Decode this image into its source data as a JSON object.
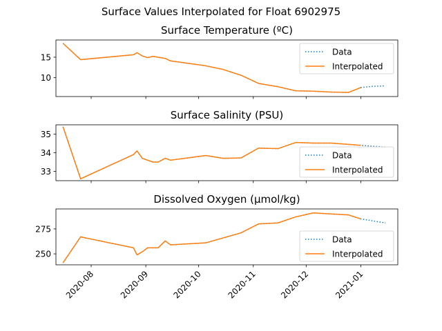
{
  "figure": {
    "title": "Surface Values Interpolated for Float 6902975"
  },
  "x_axis": {
    "tick_labels": [
      "2020-08",
      "2020-09",
      "2020-10",
      "2020-11",
      "2020-12",
      "2021-01"
    ],
    "tick_values": [
      "2020-08-01",
      "2020-09-01",
      "2020-10-01",
      "2020-11-01",
      "2020-12-01",
      "2021-01-01"
    ],
    "range": [
      "2020-07-12",
      "2021-01-22"
    ]
  },
  "legend": {
    "data_label": "Data",
    "interp_label": "Interpolated",
    "placement": "right"
  },
  "colors": {
    "data": "#1f77b4",
    "interpolated": "#ff7f0e"
  },
  "chart_data": [
    {
      "type": "line",
      "title": "Surface Temperature (ºC)",
      "ylim": [
        5.4,
        19.2
      ],
      "yticks": [
        10,
        15
      ],
      "legend_placement": "upper right",
      "series": [
        {
          "name": "Data",
          "style": "dotted",
          "x": [
            "2020-07-16",
            "2020-07-26",
            "2020-08-25",
            "2020-08-27",
            "2020-08-30",
            "2020-09-02",
            "2020-09-05",
            "2020-09-08",
            "2020-09-12",
            "2020-09-15",
            "2020-10-05",
            "2020-10-15",
            "2020-10-25",
            "2020-11-04",
            "2020-11-15",
            "2020-11-25",
            "2020-12-05",
            "2020-12-15",
            "2020-12-25",
            "2021-01-01",
            "2021-01-08",
            "2021-01-15"
          ],
          "values": [
            18.4,
            14.4,
            15.6,
            16.1,
            15.3,
            14.9,
            15.2,
            15.0,
            14.7,
            14.1,
            12.9,
            12.0,
            10.6,
            8.6,
            7.8,
            6.8,
            6.7,
            6.5,
            6.4,
            7.6,
            7.9,
            8.0
          ]
        },
        {
          "name": "Interpolated",
          "style": "solid",
          "x": [
            "2020-07-16",
            "2020-07-26",
            "2020-08-25",
            "2020-08-27",
            "2020-08-30",
            "2020-09-02",
            "2020-09-05",
            "2020-09-08",
            "2020-09-12",
            "2020-09-15",
            "2020-10-05",
            "2020-10-15",
            "2020-10-25",
            "2020-11-04",
            "2020-11-15",
            "2020-11-25",
            "2020-12-05",
            "2020-12-15",
            "2020-12-25",
            "2021-01-01"
          ],
          "values": [
            18.4,
            14.4,
            15.6,
            16.1,
            15.3,
            14.9,
            15.2,
            15.0,
            14.7,
            14.1,
            12.9,
            12.0,
            10.6,
            8.6,
            7.8,
            6.8,
            6.7,
            6.5,
            6.4,
            7.6
          ]
        }
      ]
    },
    {
      "type": "line",
      "title": "Surface Salinity (PSU)",
      "ylim": [
        32.5,
        35.5
      ],
      "yticks": [
        33,
        34,
        35
      ],
      "legend_placement": "lower right",
      "series": [
        {
          "name": "Data",
          "style": "dotted",
          "x": [
            "2020-07-16",
            "2020-07-26",
            "2020-08-25",
            "2020-08-27",
            "2020-08-30",
            "2020-09-05",
            "2020-09-08",
            "2020-09-12",
            "2020-09-15",
            "2020-10-05",
            "2020-10-15",
            "2020-10-25",
            "2020-11-04",
            "2020-11-15",
            "2020-11-25",
            "2020-12-05",
            "2020-12-15",
            "2020-12-25",
            "2021-01-01",
            "2021-01-08",
            "2021-01-15"
          ],
          "values": [
            35.4,
            32.6,
            33.9,
            34.1,
            33.7,
            33.5,
            33.5,
            33.7,
            33.6,
            33.85,
            33.7,
            33.72,
            34.25,
            34.22,
            34.55,
            34.52,
            34.52,
            34.45,
            34.4,
            34.35,
            34.3
          ]
        },
        {
          "name": "Interpolated",
          "style": "solid",
          "x": [
            "2020-07-16",
            "2020-07-26",
            "2020-08-25",
            "2020-08-27",
            "2020-08-30",
            "2020-09-05",
            "2020-09-08",
            "2020-09-12",
            "2020-09-15",
            "2020-10-05",
            "2020-10-15",
            "2020-10-25",
            "2020-11-04",
            "2020-11-15",
            "2020-11-25",
            "2020-12-05",
            "2020-12-15",
            "2020-12-25",
            "2021-01-01"
          ],
          "values": [
            35.4,
            32.6,
            33.9,
            34.1,
            33.7,
            33.5,
            33.5,
            33.7,
            33.6,
            33.85,
            33.7,
            33.72,
            34.25,
            34.22,
            34.55,
            34.52,
            34.52,
            34.45,
            34.4
          ]
        }
      ]
    },
    {
      "type": "line",
      "title": "Dissolved Oxygen (µmol/kg)",
      "ylim": [
        239,
        295
      ],
      "yticks": [
        250,
        275
      ],
      "legend_placement": "lower right",
      "series": [
        {
          "name": "Data",
          "style": "dotted",
          "x": [
            "2020-07-16",
            "2020-07-26",
            "2020-08-25",
            "2020-08-27",
            "2020-08-30",
            "2020-09-02",
            "2020-09-05",
            "2020-09-08",
            "2020-09-12",
            "2020-09-15",
            "2020-10-05",
            "2020-10-25",
            "2020-11-04",
            "2020-11-15",
            "2020-11-25",
            "2020-12-05",
            "2020-12-15",
            "2020-12-25",
            "2021-01-01",
            "2021-01-08",
            "2021-01-15"
          ],
          "values": [
            241,
            267,
            256,
            249,
            252,
            256,
            256,
            256,
            263,
            259,
            261,
            271,
            280,
            281,
            287,
            291,
            290,
            289,
            285,
            283,
            281
          ]
        },
        {
          "name": "Interpolated",
          "style": "solid",
          "x": [
            "2020-07-16",
            "2020-07-26",
            "2020-08-25",
            "2020-08-27",
            "2020-08-30",
            "2020-09-02",
            "2020-09-05",
            "2020-09-08",
            "2020-09-12",
            "2020-09-15",
            "2020-10-05",
            "2020-10-25",
            "2020-11-04",
            "2020-11-15",
            "2020-11-25",
            "2020-12-05",
            "2020-12-15",
            "2020-12-25",
            "2021-01-01"
          ],
          "values": [
            241,
            267,
            256,
            249,
            252,
            256,
            256,
            256,
            263,
            259,
            261,
            271,
            280,
            281,
            287,
            291,
            290,
            289,
            285
          ]
        }
      ]
    }
  ]
}
